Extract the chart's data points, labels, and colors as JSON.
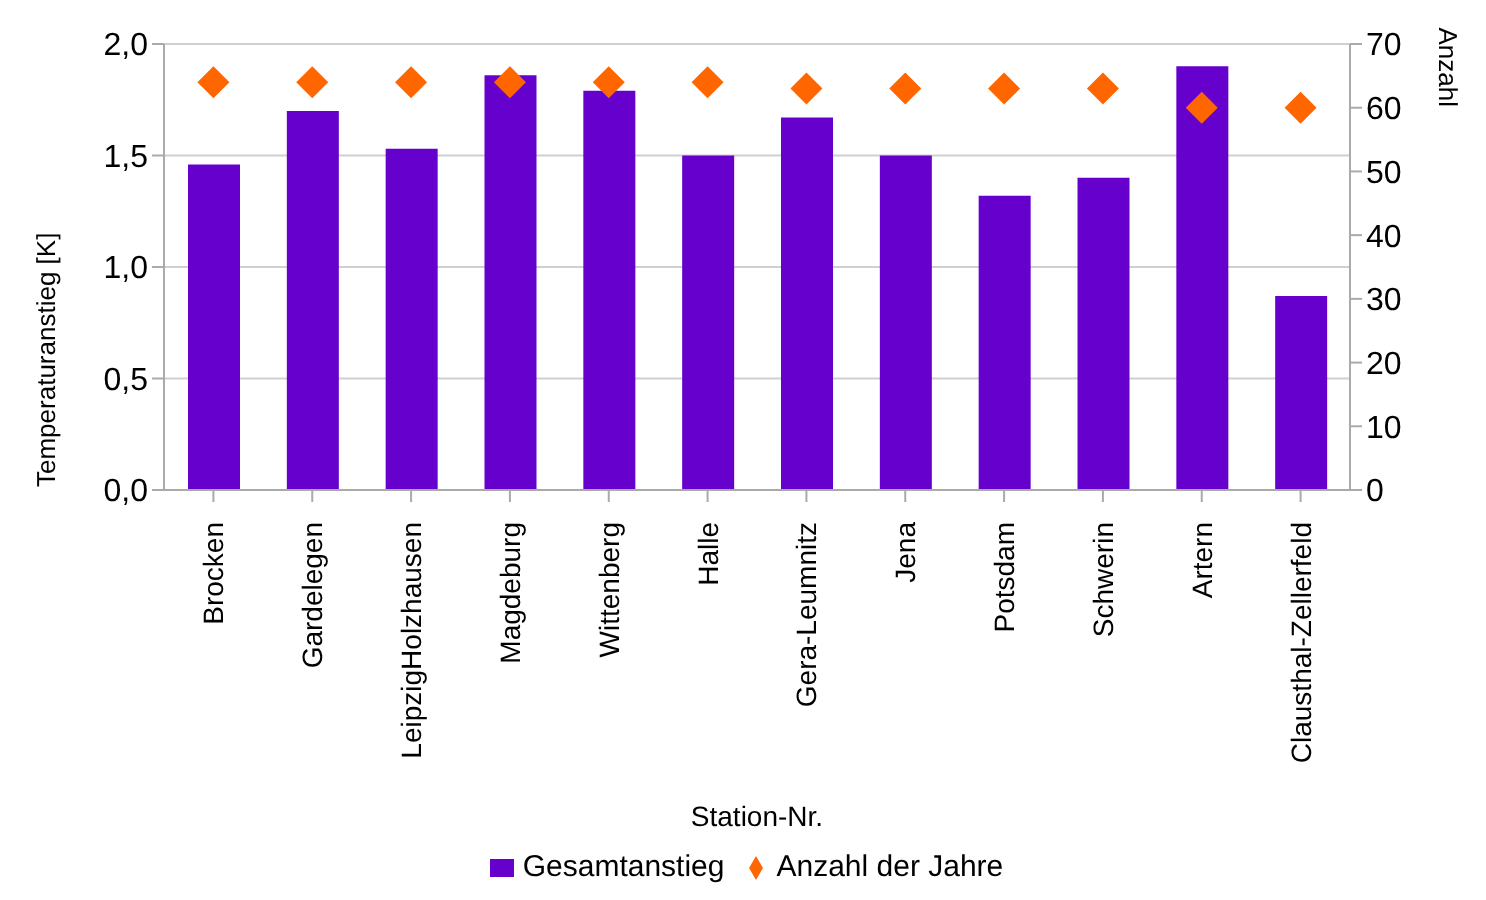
{
  "chart_data": {
    "type": "bar",
    "xlabel": "Station-Nr.",
    "ylabel": "Temperaturanstieg [K]",
    "y2label": "Anzahl",
    "categories": [
      "Brocken",
      "Gardelegen",
      "LeipzigHolzhausen",
      "Magdeburg",
      "Wittenberg",
      "Halle",
      "Gera-Leumnitz",
      "Jena",
      "Potsdam",
      "Schwerin",
      "Artern",
      "Clausthal-Zellerfeld"
    ],
    "series": [
      {
        "name": "Gesamtanstieg",
        "color": "#6600cc",
        "values": [
          1.46,
          1.7,
          1.53,
          1.86,
          1.79,
          1.5,
          1.67,
          1.5,
          1.32,
          1.4,
          1.9,
          0.87
        ]
      },
      {
        "name": "Anzahl der Jahre",
        "type": "scatter",
        "axis": "y2",
        "color": "#ff6600",
        "marker": "diamond",
        "values": [
          64,
          64,
          64,
          64,
          64,
          64,
          63,
          63,
          63,
          63,
          60,
          60
        ]
      }
    ],
    "ylim": [
      0,
      2
    ],
    "yticks": [
      {
        "value": 0,
        "label": "0,0"
      },
      {
        "value": 0.5,
        "label": "0,5"
      },
      {
        "value": 1,
        "label": "1,0"
      },
      {
        "value": 1.5,
        "label": "1,5"
      },
      {
        "value": 2,
        "label": "2,0"
      }
    ],
    "y2lim": [
      0,
      70
    ],
    "y2ticks": [
      0,
      10,
      20,
      30,
      40,
      50,
      60,
      70
    ],
    "grid": "y",
    "legend": "bottom"
  }
}
